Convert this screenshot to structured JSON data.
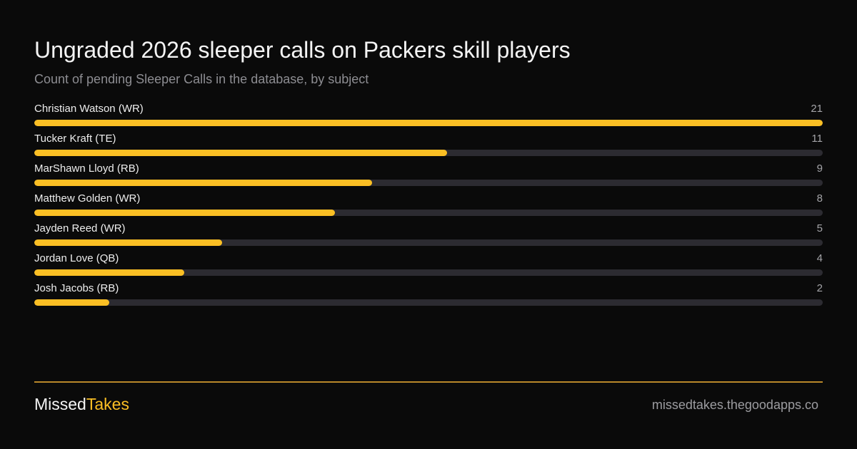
{
  "chart_data": {
    "type": "bar",
    "orientation": "horizontal",
    "title": "Ungraded 2026 sleeper calls on Packers skill players",
    "subtitle": "Count of pending Sleeper Calls in the database, by subject",
    "categories": [
      "Christian Watson (WR)",
      "Tucker Kraft (TE)",
      "MarShawn Lloyd (RB)",
      "Matthew Golden (WR)",
      "Jayden Reed (WR)",
      "Jordan Love (QB)",
      "Josh Jacobs (RB)"
    ],
    "values": [
      21,
      11,
      9,
      8,
      5,
      4,
      2
    ],
    "xlim": [
      0,
      21
    ],
    "xlabel": "",
    "ylabel": "",
    "grid": false,
    "legend": "none"
  },
  "footer": {
    "brand_part1": "Missed",
    "brand_part2": "Takes",
    "site": "missedtakes.thegoodapps.co"
  },
  "colors": {
    "background": "#0a0a0a",
    "bar_fill": "#fbbf24",
    "bar_track": "#2c2b31",
    "divider": "#b9882a"
  }
}
